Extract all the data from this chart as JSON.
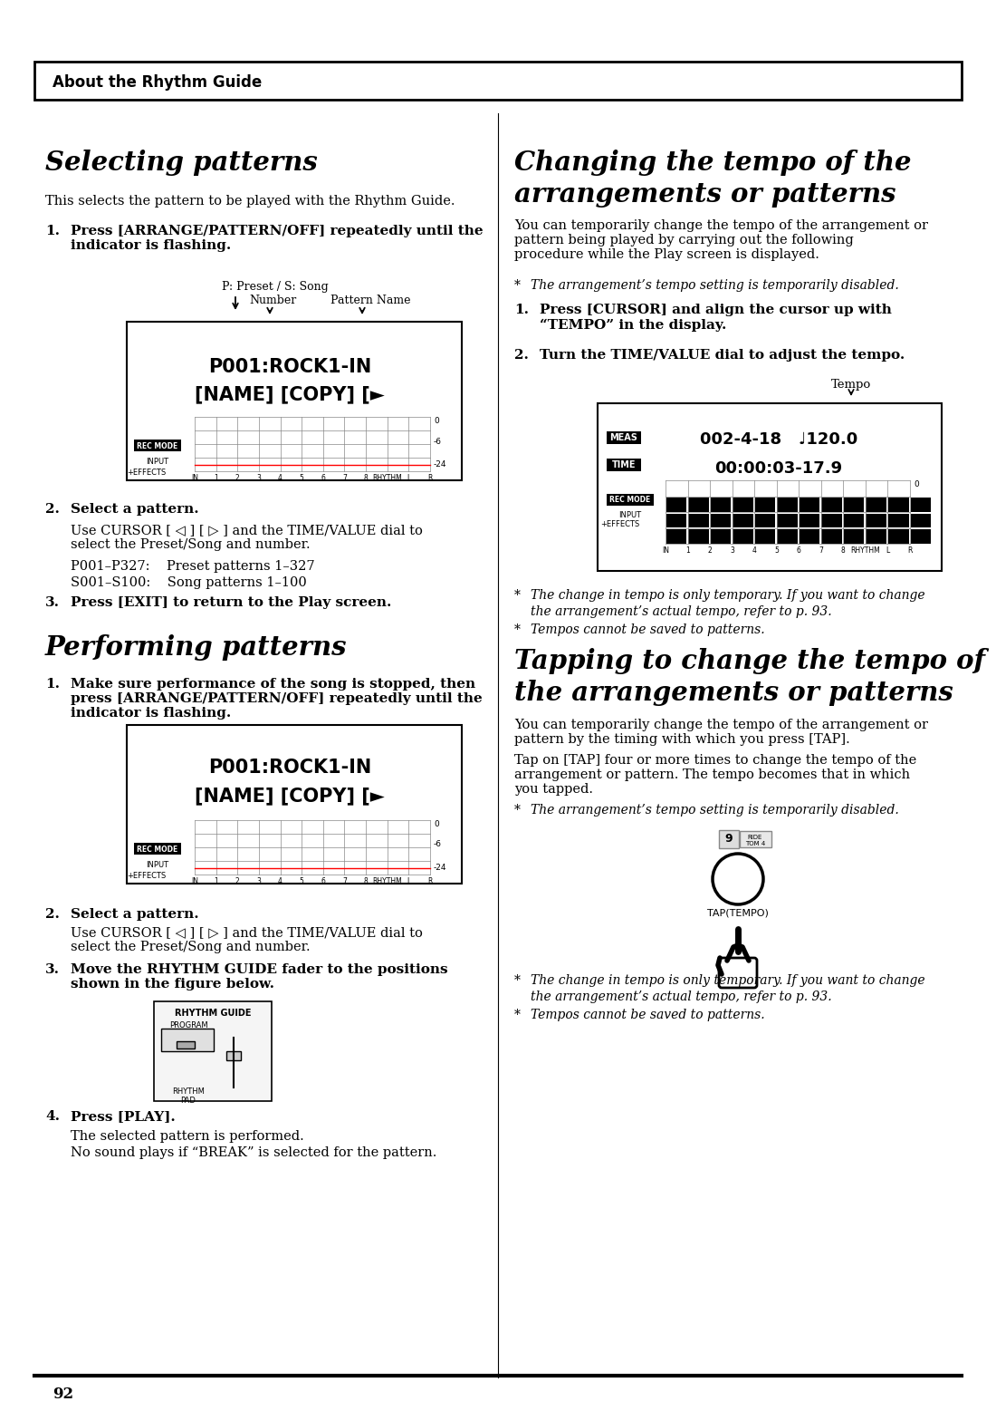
{
  "page_number": "92",
  "header_text": "About the Rhythm Guide",
  "bg_color": "#ffffff",
  "left_col": {
    "s1_title": "Selecting patterns",
    "s1_intro": "This selects the pattern to be played with the Rhythm Guide.",
    "s1_step1_bold": "Press [ARRANGE/PATTERN/OFF] repeatedly until the indicator is flashing.",
    "diagram1_preset_song": "P: Preset / S: Song",
    "diagram1_number": "Number",
    "diagram1_pattern_name": "Pattern Name",
    "diagram1_lcd1": "P001:ROCK1-IN",
    "diagram1_lcd2": "[NAME] [COPY] [►",
    "s1_step2_bold": "Select a pattern.",
    "s1_step2_text": "Use CURSOR [ ◁ ] [ ▷ ] and the TIME/VALUE dial to\nselect the Preset/Song and number.",
    "s1_step2_line1": "P001–P327:    Preset patterns 1–327",
    "s1_step2_line2": "S001–S100:    Song patterns 1–100",
    "s1_step3_bold": "Press [EXIT] to return to the Play screen.",
    "s2_title": "Performing patterns",
    "s2_step1_bold": "Make sure performance of the song is stopped, then\npress [ARRANGE/PATTERN/OFF] repeatedly until the\nindicator is flashing.",
    "s2_step2_bold": "Select a pattern.",
    "s2_step2_text": "Use CURSOR [ ◁ ] [ ▷ ] and the TIME/VALUE dial to\nselect the Preset/Song and number.",
    "s2_step3_bold": "Move the RHYTHM GUIDE fader to the positions\nshown in the figure below.",
    "s2_step4_bold": "Press [PLAY].",
    "s2_step4_text1": "The selected pattern is performed.",
    "s2_step4_text2": "No sound plays if “BREAK” is selected for the pattern.",
    "rhythm_guide_label": "RHYTHM GUIDE",
    "program_label": "PROGRAM",
    "rhythm_pad_label": "RHYTHM\nPAD"
  },
  "right_col": {
    "s3_title_line1": "Changing the tempo of the",
    "s3_title_line2": "arrangements or patterns",
    "s3_intro": "You can temporarily change the tempo of the arrangement or\npattern being played by carrying out the following\nprocedure while the Play screen is displayed.",
    "s3_note1": "The arrangement’s tempo setting is temporarily disabled.",
    "s3_step1_bold": "Press [CURSOR] and align the cursor up with\n“TEMPO” in the display.",
    "s3_step2_bold": "Turn the TIME/VALUE dial to adjust the tempo.",
    "tempo_label": "Tempo",
    "tempo_lcd1": "MEAS  002-4-18   ♩120.0",
    "tempo_lcd2": "TIME  00:00:03-17.9",
    "s3_note2_line1": "The change in tempo is only temporary. If you want to change",
    "s3_note2_line2": "the arrangement’s actual tempo, refer to p. 93.",
    "s3_note3": "Tempos cannot be saved to patterns.",
    "s4_title_line1": "Tapping to change the tempo of",
    "s4_title_line2": "the arrangements or patterns",
    "s4_intro": "You can temporarily change the tempo of the arrangement or\npattern by the timing with which you press [TAP].",
    "s4_para": "Tap on [TAP] four or more times to change the tempo of the\narrangement or pattern. The tempo becomes that in which\nyou tapped.",
    "s4_note1": "The arrangement’s tempo setting is temporarily disabled.",
    "s4_note2_line1": "The change in tempo is only temporary. If you want to change",
    "s4_note2_line2": "the arrangement’s actual tempo, refer to p. 93.",
    "s4_note3": "Tempos cannot be saved to patterns.",
    "tap_label": "TAP(TEMPO)"
  }
}
